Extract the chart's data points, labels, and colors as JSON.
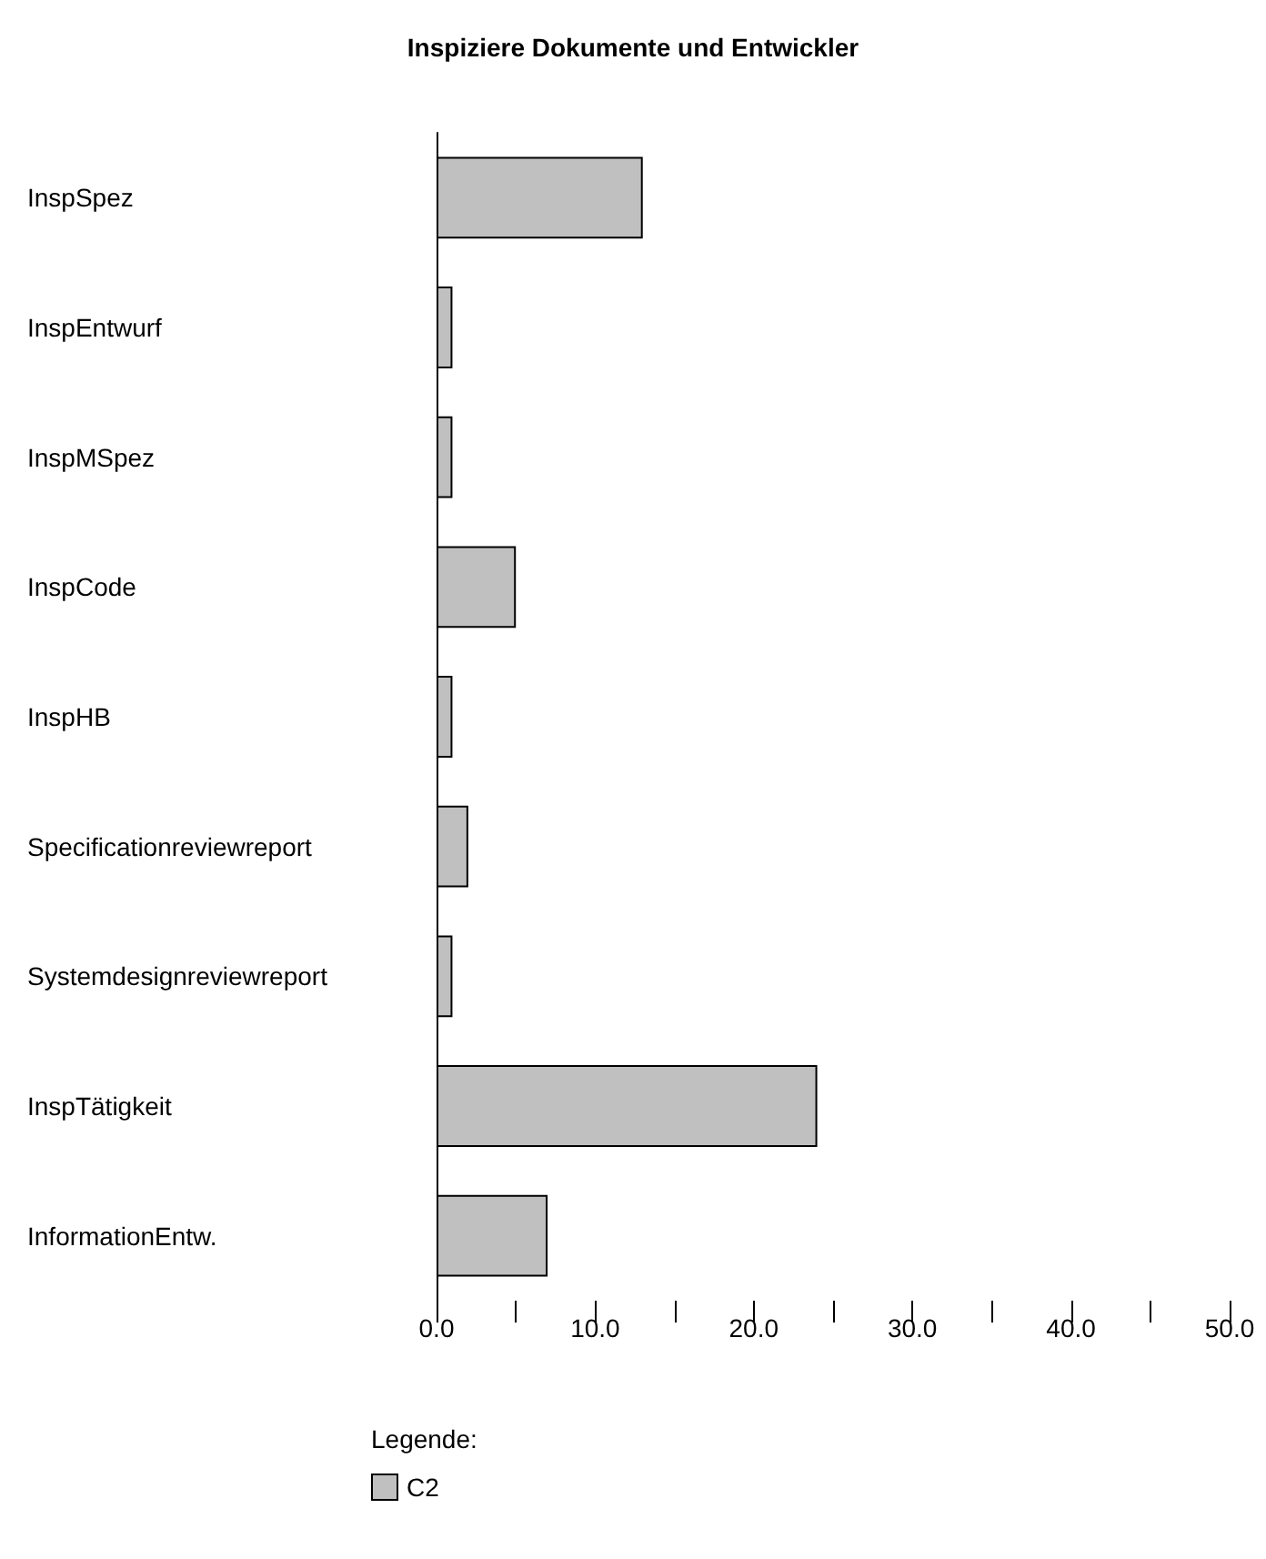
{
  "chart_data": {
    "type": "bar",
    "orientation": "horizontal",
    "title": "Inspiziere Dokumente und Entwickler",
    "legend_title": "Legende:",
    "categories": [
      "InspSpez",
      "InspEntwurf",
      "InspMSpez",
      "InspCode",
      "InspHB",
      "Specificationreviewreport",
      "Systemdesignreviewreport",
      "InspTätigkeit",
      "InformationEntw."
    ],
    "series": [
      {
        "name": "C2",
        "color": "#c0c0c0",
        "values": [
          13,
          1,
          1,
          5,
          1,
          2,
          1,
          24,
          7
        ]
      }
    ],
    "xlim": [
      0,
      50
    ],
    "xticks": [
      {
        "value": 0,
        "label": "0.0"
      },
      {
        "value": 5,
        "label": null
      },
      {
        "value": 10,
        "label": "10.0"
      },
      {
        "value": 15,
        "label": null
      },
      {
        "value": 20,
        "label": "20.0"
      },
      {
        "value": 25,
        "label": null
      },
      {
        "value": 30,
        "label": "30.0"
      },
      {
        "value": 35,
        "label": null
      },
      {
        "value": 40,
        "label": "40.0"
      },
      {
        "value": 45,
        "label": null
      },
      {
        "value": 50,
        "label": "50.0"
      }
    ],
    "grid": false,
    "legend": "bottom left"
  }
}
